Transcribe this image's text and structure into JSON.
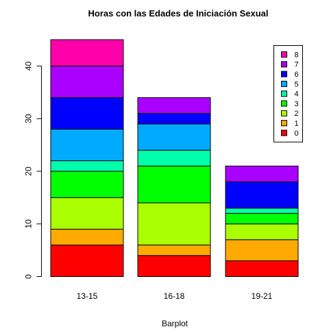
{
  "chart_data": {
    "type": "bar",
    "stacked": true,
    "title": "Horas con las Edades de Iniciación Sexual",
    "xlabel": "Barplot",
    "ylabel": "",
    "categories": [
      "13-15",
      "16-18",
      "19-21"
    ],
    "ylim": [
      0,
      45
    ],
    "yticks": [
      0,
      10,
      20,
      30,
      40
    ],
    "legend_position": "top-right",
    "series": [
      {
        "name": "0",
        "color": "#FF0000",
        "values": [
          6,
          4,
          3
        ]
      },
      {
        "name": "1",
        "color": "#FFAA00",
        "values": [
          3,
          2,
          4
        ]
      },
      {
        "name": "2",
        "color": "#AAFF00",
        "values": [
          6,
          8,
          3
        ]
      },
      {
        "name": "3",
        "color": "#00FF00",
        "values": [
          5,
          7,
          2
        ]
      },
      {
        "name": "4",
        "color": "#00FFAA",
        "values": [
          2,
          3,
          1
        ]
      },
      {
        "name": "5",
        "color": "#00AAFF",
        "values": [
          6,
          5,
          0
        ]
      },
      {
        "name": "6",
        "color": "#0000FF",
        "values": [
          6,
          2,
          5
        ]
      },
      {
        "name": "7",
        "color": "#AA00FF",
        "values": [
          6,
          3,
          3
        ]
      },
      {
        "name": "8",
        "color": "#FF00AA",
        "values": [
          5,
          0,
          0
        ]
      }
    ]
  }
}
